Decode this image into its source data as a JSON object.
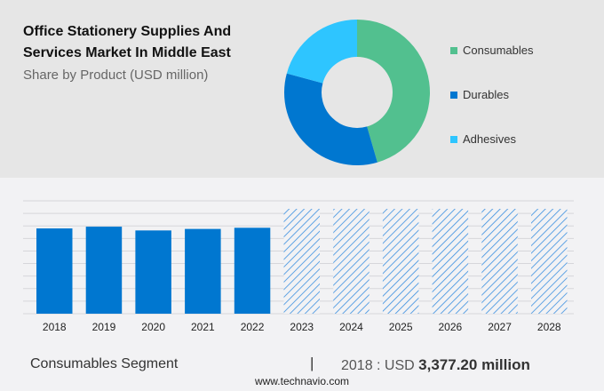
{
  "header": {
    "title": "Office Stationery Supplies And Services Market In Middle East",
    "subtitle": "Share by Product (USD million)"
  },
  "chart_data": [
    {
      "type": "pie",
      "style": "donut",
      "categories": [
        "Consumables",
        "Durables",
        "Adhesives"
      ],
      "values": [
        45.5,
        33.7,
        20.8
      ],
      "unit": "percent share (estimated)",
      "colors": [
        "#52c08f",
        "#0077d0",
        "#2ec5ff"
      ],
      "legend": "right"
    },
    {
      "type": "bar",
      "categories": [
        "2018",
        "2019",
        "2020",
        "2021",
        "2022",
        "2023",
        "2024",
        "2025",
        "2026",
        "2027",
        "2028"
      ],
      "values": [
        3377.2,
        3447,
        3297,
        3357,
        3403,
        null,
        null,
        null,
        null,
        null,
        null
      ],
      "forecast": [
        false,
        false,
        false,
        false,
        false,
        true,
        true,
        true,
        true,
        true,
        true
      ],
      "ylim": [
        0,
        4470
      ],
      "grid": true,
      "color": "#0077d0",
      "forecast_style": "hatched"
    }
  ],
  "footer": {
    "segment": "Consumables Segment",
    "separator": "|",
    "year_label": "2018 : USD",
    "value": "3,377.20 million",
    "site": "www.technavio.com"
  }
}
